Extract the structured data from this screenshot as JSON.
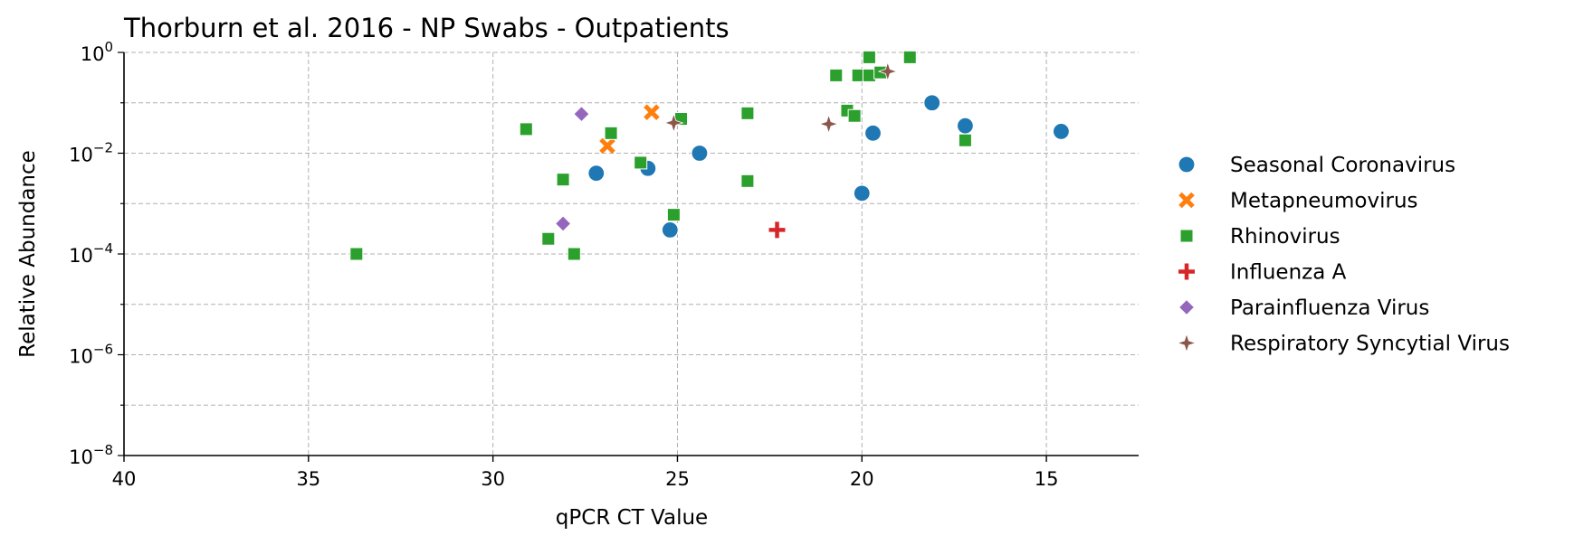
{
  "chart_data": {
    "type": "scatter",
    "title": "Thorburn et al. 2016 - NP Swabs - Outpatients",
    "xlabel": "qPCR CT Value",
    "ylabel": "Relative Abundance",
    "x_inverted": true,
    "xlim": [
      40,
      12.5
    ],
    "x_ticks": [
      40,
      35,
      30,
      25,
      20,
      15
    ],
    "y_scale": "log",
    "ylim_exponent": [
      -8,
      0
    ],
    "y_ticks": [
      {
        "base": "10",
        "exp": "0"
      },
      {
        "base": "10",
        "exp": "−2"
      },
      {
        "base": "10",
        "exp": "−4"
      },
      {
        "base": "10",
        "exp": "−6"
      },
      {
        "base": "10",
        "exp": "−8"
      }
    ],
    "grid": true,
    "legend_position": "right-outside",
    "series": [
      {
        "name": "Seasonal Coronavirus",
        "marker": "circle",
        "color": "#1f77b4",
        "points": [
          {
            "x": 27.2,
            "y": 0.004
          },
          {
            "x": 25.8,
            "y": 0.005
          },
          {
            "x": 25.2,
            "y": 0.0003
          },
          {
            "x": 24.4,
            "y": 0.01
          },
          {
            "x": 20.0,
            "y": 0.0016
          },
          {
            "x": 19.7,
            "y": 0.025
          },
          {
            "x": 18.1,
            "y": 0.1
          },
          {
            "x": 17.2,
            "y": 0.035
          },
          {
            "x": 14.6,
            "y": 0.027
          }
        ]
      },
      {
        "name": "Metapneumovirus",
        "marker": "x",
        "color": "#ff7f0e",
        "points": [
          {
            "x": 26.9,
            "y": 0.014
          },
          {
            "x": 25.7,
            "y": 0.065
          }
        ]
      },
      {
        "name": "Rhinovirus",
        "marker": "square",
        "color": "#2ca02c",
        "points": [
          {
            "x": 33.7,
            "y": 0.0001
          },
          {
            "x": 29.1,
            "y": 0.03
          },
          {
            "x": 28.5,
            "y": 0.0002
          },
          {
            "x": 28.1,
            "y": 0.003
          },
          {
            "x": 27.8,
            "y": 0.0001
          },
          {
            "x": 26.8,
            "y": 0.025
          },
          {
            "x": 26.0,
            "y": 0.0065
          },
          {
            "x": 25.1,
            "y": 0.0006
          },
          {
            "x": 24.9,
            "y": 0.048
          },
          {
            "x": 23.1,
            "y": 0.062
          },
          {
            "x": 23.1,
            "y": 0.0028
          },
          {
            "x": 20.7,
            "y": 0.35
          },
          {
            "x": 20.4,
            "y": 0.07
          },
          {
            "x": 20.2,
            "y": 0.055
          },
          {
            "x": 20.1,
            "y": 0.35
          },
          {
            "x": 19.8,
            "y": 0.35
          },
          {
            "x": 19.8,
            "y": 0.8
          },
          {
            "x": 19.5,
            "y": 0.4
          },
          {
            "x": 18.7,
            "y": 0.8
          },
          {
            "x": 17.2,
            "y": 0.018
          }
        ]
      },
      {
        "name": "Influenza A",
        "marker": "plus",
        "color": "#d62728",
        "points": [
          {
            "x": 22.3,
            "y": 0.0003
          }
        ]
      },
      {
        "name": "Parainfluenza Virus",
        "marker": "diamond",
        "color": "#9467bd",
        "points": [
          {
            "x": 27.6,
            "y": 0.06
          },
          {
            "x": 28.1,
            "y": 0.0004
          }
        ]
      },
      {
        "name": "Respiratory Syncytial Virus",
        "marker": "star",
        "color": "#8c564b",
        "points": [
          {
            "x": 25.1,
            "y": 0.04
          },
          {
            "x": 20.9,
            "y": 0.038
          },
          {
            "x": 19.3,
            "y": 0.42
          }
        ]
      }
    ]
  }
}
